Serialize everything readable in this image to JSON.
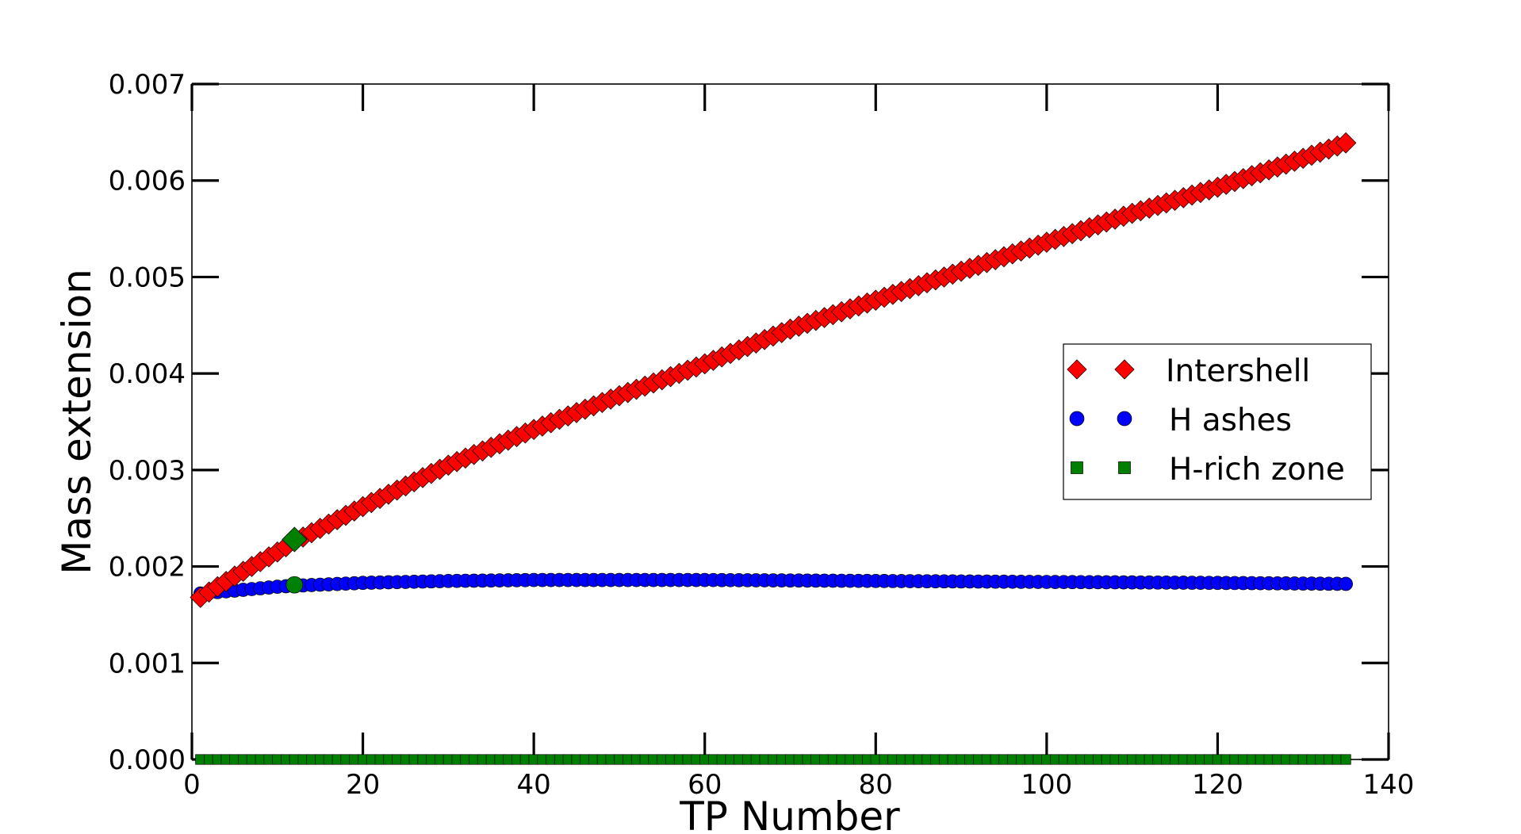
{
  "chart_data": {
    "type": "scatter",
    "xlabel": "TP Number",
    "ylabel": "Mass extension",
    "xlim": [
      0,
      140
    ],
    "ylim": [
      0,
      0.007
    ],
    "xticks": [
      0,
      20,
      40,
      60,
      80,
      100,
      120,
      140
    ],
    "xtick_labels": [
      "0",
      "20",
      "40",
      "60",
      "80",
      "100",
      "120",
      "140"
    ],
    "yticks": [
      0,
      0.001,
      0.002,
      0.003,
      0.004,
      0.005,
      0.006,
      0.007
    ],
    "ytick_labels": [
      "0.000",
      "0.001",
      "0.002",
      "0.003",
      "0.004",
      "0.005",
      "0.006",
      "0.007"
    ],
    "grid": false,
    "legend_position": "center-right",
    "series": [
      {
        "name": "Intershell",
        "marker": "diamond",
        "color": "#ff0000",
        "x_start": 1,
        "x_end": 135,
        "x_step": 1,
        "anchors": [
          [
            1,
            0.00168
          ],
          [
            5,
            0.0019
          ],
          [
            10,
            0.00215
          ],
          [
            12,
            0.00226
          ],
          [
            20,
            0.00262
          ],
          [
            30,
            0.00305
          ],
          [
            40,
            0.00342
          ],
          [
            50,
            0.00377
          ],
          [
            60,
            0.0041
          ],
          [
            70,
            0.00446
          ],
          [
            80,
            0.00476
          ],
          [
            90,
            0.00506
          ],
          [
            100,
            0.00536
          ],
          [
            110,
            0.00566
          ],
          [
            120,
            0.00593
          ],
          [
            130,
            0.00623
          ],
          [
            135,
            0.00639
          ]
        ]
      },
      {
        "name": "H ashes",
        "marker": "circle",
        "color": "#0000ff",
        "x_start": 1,
        "x_end": 135,
        "x_step": 1,
        "anchors": [
          [
            1,
            0.00172
          ],
          [
            5,
            0.00175
          ],
          [
            10,
            0.00179
          ],
          [
            12,
            0.0018
          ],
          [
            20,
            0.00183
          ],
          [
            30,
            0.00185
          ],
          [
            40,
            0.00186
          ],
          [
            60,
            0.00186
          ],
          [
            80,
            0.00185
          ],
          [
            100,
            0.00184
          ],
          [
            120,
            0.00183
          ],
          [
            135,
            0.00182
          ]
        ]
      },
      {
        "name": "H-rich zone",
        "marker": "square",
        "color": "#008000",
        "x_start": 1,
        "x_end": 135,
        "x_step": 1,
        "anchors": [
          [
            1,
            0.0
          ],
          [
            135,
            0.0
          ]
        ]
      }
    ],
    "highlights": [
      {
        "marker": "diamond",
        "color": "#008000",
        "x": 12,
        "y": 0.00228
      },
      {
        "marker": "circle",
        "color": "#008000",
        "x": 12,
        "y": 0.00181
      }
    ]
  }
}
